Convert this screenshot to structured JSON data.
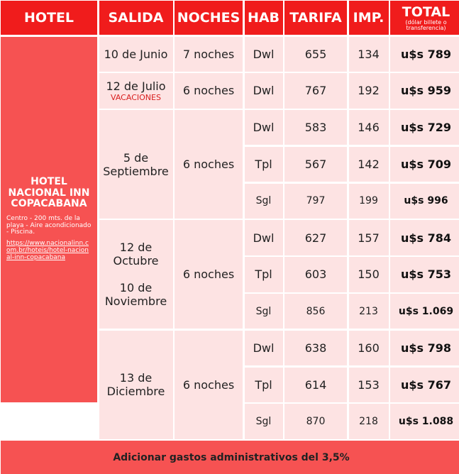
{
  "headers": {
    "hotel": "HOTEL",
    "salida": "SALIDA",
    "noches": "NOCHES",
    "hab": "HAB",
    "tarifa": "TARIFA",
    "imp": "IMP.",
    "total": "TOTAL",
    "total_sub": "(dólar billete o transferencia)"
  },
  "hotel": {
    "name": "HOTEL NACIONAL INN COPACABANA",
    "desc": "Centro - 200 mts. de la playa - Aire acondicionado - Piscina.",
    "url": "https://www.nacionalinn.com.br/hoteis/hotel-nacional-inn-copacabana"
  },
  "departures": [
    {
      "date": "10 de Junio",
      "nights": "7 noches"
    },
    {
      "date": "12 de Julio",
      "note": "VACACIONES",
      "nights": "6 noches"
    },
    {
      "date": "5 de Septiembre",
      "nights": "6 noches"
    },
    {
      "date": "12 de Octubre",
      "date2": "10 de Noviembre",
      "nights": "6 noches"
    },
    {
      "date": "13 de Diciembre",
      "nights": "6 noches"
    }
  ],
  "rows": [
    {
      "hab": "Dwl",
      "tarifa": "655",
      "imp": "134",
      "total": "u$s 789"
    },
    {
      "hab": "Dwl",
      "tarifa": "767",
      "imp": "192",
      "total": "u$s 959"
    },
    {
      "hab": "Dwl",
      "tarifa": "583",
      "imp": "146",
      "total": "u$s 729"
    },
    {
      "hab": "Tpl",
      "tarifa": "567",
      "imp": "142",
      "total": "u$s 709"
    },
    {
      "hab": "Sgl",
      "tarifa": "797",
      "imp": "199",
      "total": "u$s 996"
    },
    {
      "hab": "Dwl",
      "tarifa": "627",
      "imp": "157",
      "total": "u$s 784"
    },
    {
      "hab": "Tpl",
      "tarifa": "603",
      "imp": "150",
      "total": "u$s 753"
    },
    {
      "hab": "Sgl",
      "tarifa": "856",
      "imp": "213",
      "total": "u$s 1.069"
    },
    {
      "hab": "Dwl",
      "tarifa": "638",
      "imp": "160",
      "total": "u$s 798"
    },
    {
      "hab": "Tpl",
      "tarifa": "614",
      "imp": "153",
      "total": "u$s 767"
    },
    {
      "hab": "Sgl",
      "tarifa": "870",
      "imp": "218",
      "total": "u$s 1.088"
    }
  ],
  "footer": "Adicionar gastos administrativos del 3,5%"
}
